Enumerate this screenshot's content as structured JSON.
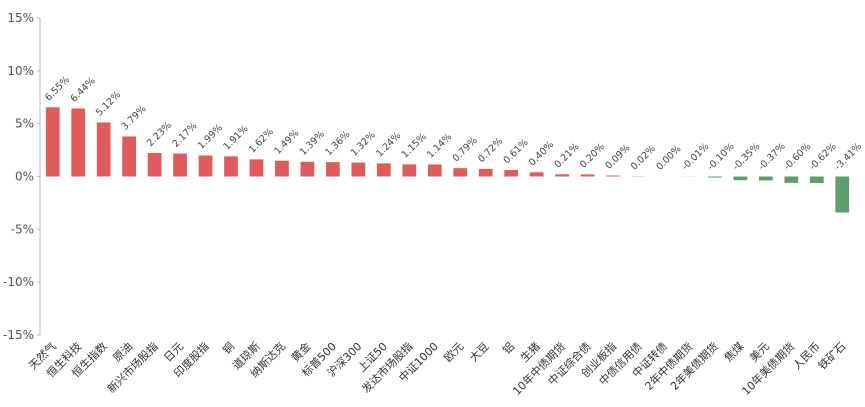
{
  "chart_data": {
    "type": "bar",
    "categories": [
      "天然气",
      "恒生科技",
      "恒生指数",
      "原油",
      "新兴市场股指",
      "日元",
      "印度股指",
      "铜",
      "道琼斯",
      "纳斯达克",
      "黄金",
      "标普500",
      "沪深300",
      "上证50",
      "发达市场股指",
      "中证1000",
      "欧元",
      "大豆",
      "铝",
      "生猪",
      "10年中债期货",
      "中证综合债",
      "创业板指",
      "中债信用债",
      "中证转债",
      "2年中债期货",
      "2年美债期货",
      "焦煤",
      "美元",
      "10年美债期货",
      "人民币",
      "铁矿石"
    ],
    "values": [
      6.55,
      6.44,
      5.12,
      3.79,
      2.23,
      2.17,
      1.99,
      1.91,
      1.62,
      1.49,
      1.39,
      1.36,
      1.32,
      1.24,
      1.15,
      1.14,
      0.79,
      0.72,
      0.61,
      0.4,
      0.21,
      0.2,
      0.09,
      0.02,
      0.0,
      -0.01,
      -0.1,
      -0.35,
      -0.37,
      -0.6,
      -0.62,
      -3.41
    ],
    "value_labels": [
      "6.55%",
      "6.44%",
      "5.12%",
      "3.79%",
      "2.23%",
      "2.17%",
      "1.99%",
      "1.91%",
      "1.62%",
      "1.49%",
      "1.39%",
      "1.36%",
      "1.32%",
      "1.24%",
      "1.15%",
      "1.14%",
      "0.79%",
      "0.72%",
      "0.61%",
      "0.40%",
      "0.21%",
      "0.20%",
      "0.09%",
      "0.02%",
      "0.00%",
      "-0.01%",
      "-0.10%",
      "-0.35%",
      "-0.37%",
      "-0.60%",
      "-0.62%",
      "-3.41%"
    ],
    "positive_color": "#e05c5c",
    "negative_color": "#5e9e6b",
    "ylim": [
      -15,
      15
    ],
    "yticks": [
      {
        "value": -15,
        "label": "-15%"
      },
      {
        "value": -10,
        "label": "-10%"
      },
      {
        "value": -5,
        "label": "-5%"
      },
      {
        "value": 0,
        "label": "0%"
      },
      {
        "value": 5,
        "label": "5%"
      },
      {
        "value": 10,
        "label": "10%"
      },
      {
        "value": 15,
        "label": "15%"
      }
    ],
    "grid": false
  }
}
